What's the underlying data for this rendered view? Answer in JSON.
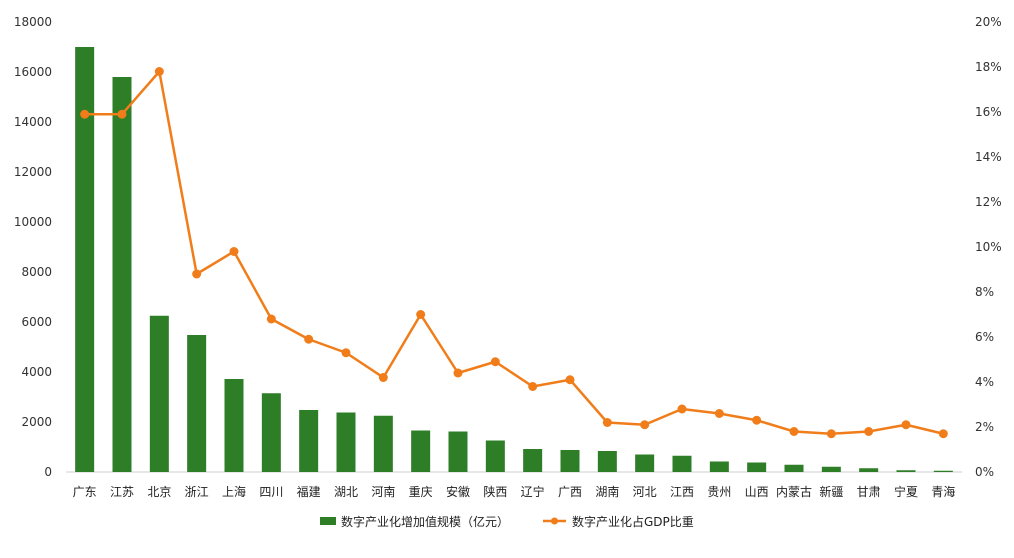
{
  "chart_data": {
    "type": "bar",
    "categories": [
      "广东",
      "江苏",
      "北京",
      "浙江",
      "上海",
      "四川",
      "福建",
      "湖北",
      "河南",
      "重庆",
      "安徽",
      "陕西",
      "辽宁",
      "广西",
      "湖南",
      "河北",
      "江西",
      "贵州",
      "山西",
      "内蒙古",
      "新疆",
      "甘肃",
      "宁夏",
      "青海"
    ],
    "series": [
      {
        "name": "数字产业化增加值规模（亿元）",
        "type": "bar",
        "axis": "left",
        "values": [
          17000,
          15800,
          6250,
          5480,
          3720,
          3150,
          2480,
          2380,
          2250,
          1660,
          1620,
          1260,
          920,
          880,
          840,
          700,
          650,
          420,
          380,
          290,
          210,
          150,
          70,
          50
        ]
      },
      {
        "name": "数字产业化占GDP比重",
        "type": "line",
        "axis": "right",
        "values": [
          15.9,
          15.9,
          17.8,
          8.8,
          9.8,
          6.8,
          5.9,
          5.3,
          4.2,
          7.0,
          4.4,
          4.9,
          3.8,
          4.1,
          2.2,
          2.1,
          2.8,
          2.6,
          2.3,
          1.8,
          1.7,
          1.8,
          2.1,
          1.7
        ]
      }
    ],
    "yaxis_left": {
      "ylim": [
        0,
        18000
      ],
      "ticks": [
        "0",
        "2000",
        "4000",
        "6000",
        "8000",
        "10000",
        "12000",
        "14000",
        "16000",
        "18000"
      ]
    },
    "yaxis_right": {
      "ylim": [
        0,
        20
      ],
      "ticks": [
        "0%",
        "2%",
        "4%",
        "6%",
        "8%",
        "10%",
        "12%",
        "14%",
        "16%",
        "18%",
        "20%"
      ]
    },
    "grid": false,
    "legend_position": "bottom-center",
    "colors": {
      "bar": "#2e7d27",
      "line": "#f07d1a"
    }
  }
}
